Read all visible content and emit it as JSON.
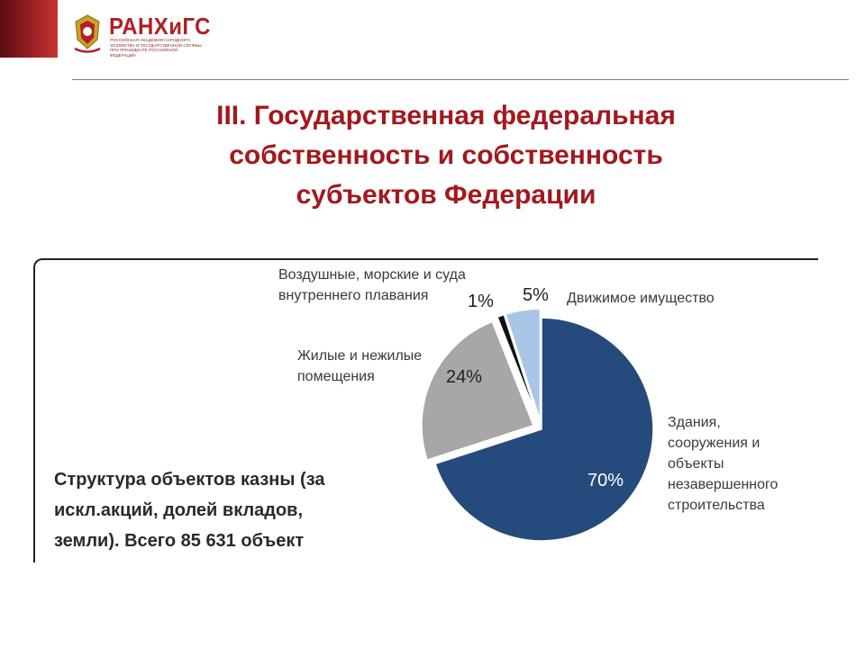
{
  "logo": {
    "name": "РАНХиГС",
    "subtitle": "Российская академия народного хозяйства и государственной службы при Президенте Российской Федерации"
  },
  "title_lines": [
    "III. Государственная федеральная",
    "собственность и собственность",
    "субъектов Федерации"
  ],
  "caption_lines": [
    "Структура объектов казны (за",
    "искл.акций,  долей вкладов,",
    "земли). Всего 85 631 объект"
  ],
  "colors": {
    "accent_red": "#a3181d",
    "slice_buildings": "#254a7c",
    "slice_premises": "#a7a7a7",
    "slice_vessels": "#111111",
    "slice_movable": "#a9c6e6"
  },
  "chart_data": {
    "type": "pie",
    "start": "12 o'clock, clockwise",
    "slices": [
      {
        "label_lines": [
          "Здания,",
          "сооружения и",
          "объекты",
          "незавершенного",
          "строительства"
        ],
        "value": 70,
        "value_label": "70%",
        "color": "#254a7c",
        "exploded": false
      },
      {
        "label_lines": [
          "Жилые и нежилые",
          "помещения"
        ],
        "value": 24,
        "value_label": "24%",
        "color": "#a7a7a7",
        "exploded": true
      },
      {
        "label_lines": [
          "Воздушные, морские и суда",
          "внутреннего плавания"
        ],
        "value": 1,
        "value_label": "1%",
        "color": "#111111",
        "exploded": true
      },
      {
        "label_lines": [
          "Движимое имущество"
        ],
        "value": 5,
        "value_label": "5%",
        "color": "#a9c6e6",
        "exploded": true
      }
    ]
  }
}
